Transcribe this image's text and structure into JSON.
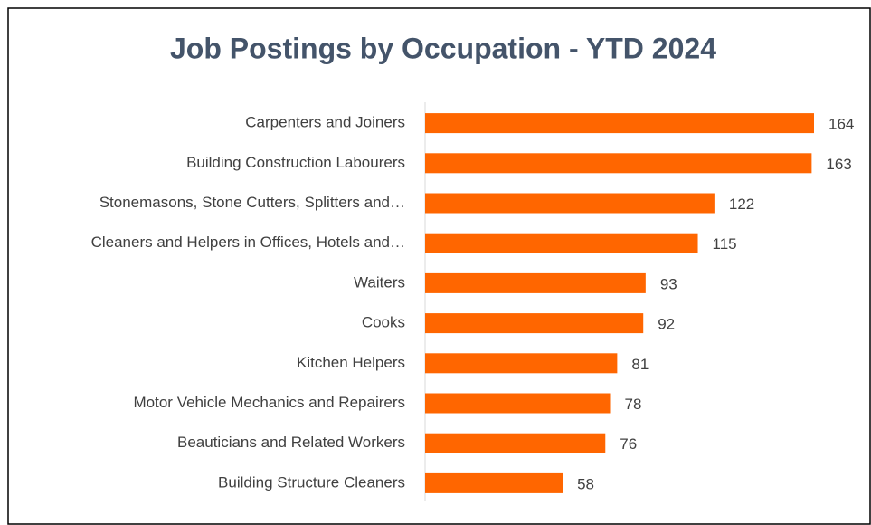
{
  "chart_data": {
    "type": "bar",
    "orientation": "horizontal",
    "title": "Job Postings by Occupation - YTD 2024",
    "categories": [
      "Carpenters and Joiners",
      "Building Construction Labourers",
      "Stonemasons, Stone Cutters, Splitters and…",
      "Cleaners and Helpers in Offices, Hotels and…",
      "Waiters",
      "Cooks",
      "Kitchen Helpers",
      "Motor Vehicle Mechanics and Repairers",
      "Beauticians and Related Workers",
      "Building Structure Cleaners"
    ],
    "values": [
      164,
      163,
      122,
      115,
      93,
      92,
      81,
      78,
      76,
      58
    ],
    "color": "#ff6600"
  }
}
